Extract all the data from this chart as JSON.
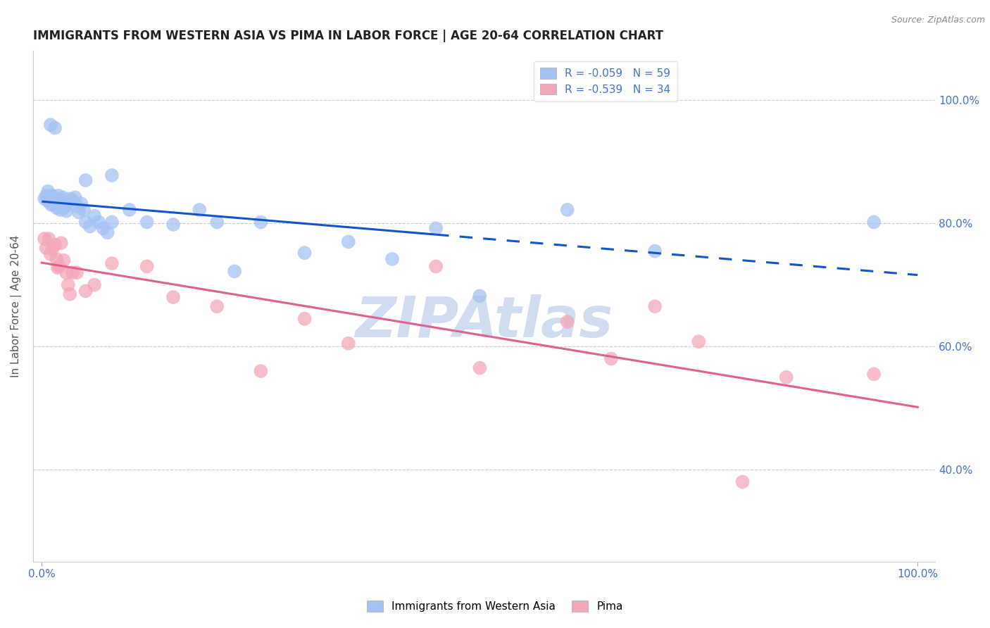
{
  "title": "IMMIGRANTS FROM WESTERN ASIA VS PIMA IN LABOR FORCE | AGE 20-64 CORRELATION CHART",
  "source": "Source: ZipAtlas.com",
  "ylabel": "In Labor Force | Age 20-64",
  "xlim": [
    -0.01,
    1.02
  ],
  "ylim": [
    0.25,
    1.08
  ],
  "ytick_values": [
    0.4,
    0.6,
    0.8,
    1.0
  ],
  "ytick_labels": [
    "40.0%",
    "60.0%",
    "80.0%",
    "100.0%"
  ],
  "xtick_values": [
    0.0,
    1.0
  ],
  "xtick_labels": [
    "0.0%",
    "100.0%"
  ],
  "legend_label1": "R = -0.059   N = 59",
  "legend_label2": "R = -0.539   N = 34",
  "legend_bottom_label1": "Immigrants from Western Asia",
  "legend_bottom_label2": "Pima",
  "blue_color": "#a4c2f4",
  "pink_color": "#f4a7b9",
  "blue_line_color": "#1155cc",
  "pink_line_color": "#e06090",
  "axis_color": "#4472c4",
  "grid_color": "#cccccc",
  "watermark_color": "#d0ddf0",
  "blue_x": [
    0.003,
    0.005,
    0.006,
    0.007,
    0.008,
    0.009,
    0.01,
    0.011,
    0.012,
    0.013,
    0.014,
    0.015,
    0.016,
    0.017,
    0.018,
    0.019,
    0.02,
    0.021,
    0.022,
    0.023,
    0.024,
    0.025,
    0.026,
    0.027,
    0.028,
    0.03,
    0.032,
    0.035,
    0.038,
    0.04,
    0.042,
    0.045,
    0.048,
    0.05,
    0.055,
    0.06,
    0.065,
    0.07,
    0.075,
    0.08,
    0.01,
    0.015,
    0.05,
    0.08,
    0.1,
    0.12,
    0.15,
    0.18,
    0.2,
    0.22,
    0.25,
    0.3,
    0.35,
    0.4,
    0.45,
    0.5,
    0.6,
    0.7,
    0.95
  ],
  "blue_y": [
    0.84,
    0.845,
    0.838,
    0.852,
    0.835,
    0.842,
    0.838,
    0.83,
    0.845,
    0.832,
    0.84,
    0.835,
    0.838,
    0.825,
    0.832,
    0.845,
    0.838,
    0.822,
    0.83,
    0.836,
    0.842,
    0.825,
    0.835,
    0.828,
    0.82,
    0.835,
    0.84,
    0.838,
    0.842,
    0.828,
    0.818,
    0.832,
    0.822,
    0.802,
    0.795,
    0.812,
    0.802,
    0.792,
    0.785,
    0.802,
    0.96,
    0.955,
    0.87,
    0.878,
    0.822,
    0.802,
    0.798,
    0.822,
    0.802,
    0.722,
    0.802,
    0.752,
    0.77,
    0.742,
    0.792,
    0.682,
    0.822,
    0.755,
    0.802
  ],
  "pink_x": [
    0.003,
    0.005,
    0.008,
    0.01,
    0.012,
    0.015,
    0.017,
    0.018,
    0.02,
    0.022,
    0.025,
    0.028,
    0.03,
    0.032,
    0.035,
    0.04,
    0.05,
    0.06,
    0.08,
    0.12,
    0.15,
    0.2,
    0.25,
    0.3,
    0.35,
    0.45,
    0.5,
    0.6,
    0.65,
    0.7,
    0.75,
    0.8,
    0.85,
    0.95
  ],
  "pink_y": [
    0.775,
    0.76,
    0.775,
    0.75,
    0.758,
    0.765,
    0.742,
    0.728,
    0.73,
    0.768,
    0.74,
    0.72,
    0.7,
    0.685,
    0.72,
    0.72,
    0.69,
    0.7,
    0.735,
    0.73,
    0.68,
    0.665,
    0.56,
    0.645,
    0.605,
    0.73,
    0.565,
    0.64,
    0.58,
    0.665,
    0.608,
    0.38,
    0.55,
    0.555
  ]
}
